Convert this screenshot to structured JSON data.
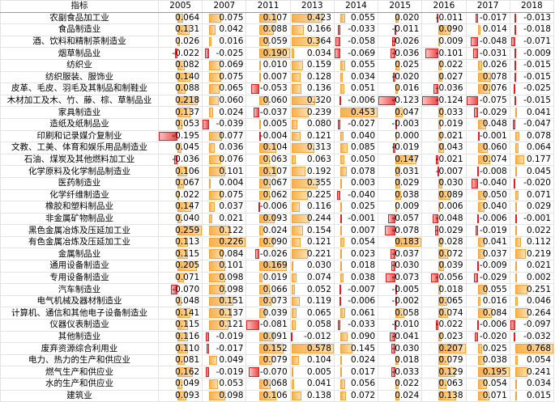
{
  "table": {
    "header": [
      "指标",
      "2005",
      "2007",
      "2011",
      "2013",
      "2014",
      "2015",
      "2016",
      "2017",
      "2018"
    ],
    "rows": [
      [
        "农副食品加工业",
        "0.064",
        "0.075",
        "0.107",
        "0.423",
        "0.055",
        "0.020",
        "-0.011",
        "-0.017",
        "-0.013"
      ],
      [
        "食品制造业",
        "0.131",
        "0.042",
        "0.088",
        "0.166",
        "-0.033",
        "-0.011",
        "0.090",
        "0.014",
        "-0.018"
      ],
      [
        "酒、饮料和精制茶制造业",
        "0.026",
        "0.016",
        "0.059",
        "0.364",
        "-0.058",
        "-0.026",
        "0.009",
        "-0.048",
        "-0.071"
      ],
      [
        "烟草制品业",
        "-0.022",
        "-0.025",
        "0.190",
        "0.034",
        "-0.069",
        "-0.036",
        "-0.101",
        "-0.031",
        "-0.009"
      ],
      [
        "纺织业",
        "0.082",
        "0.069",
        "0.010",
        "0.159",
        "0.055",
        "0.025",
        "0.022",
        "0.026",
        "-0.015"
      ],
      [
        "纺织服装、服饰业",
        "0.140",
        "0.075",
        "0.007",
        "0.128",
        "0.034",
        "-0.020",
        "0.027",
        "0.078",
        "-0.015"
      ],
      [
        "皮革、毛皮、羽毛及其制品和制鞋业",
        "0.088",
        "0.065",
        "-0.053",
        "0.136",
        "0.051",
        "0.016",
        "-0.036",
        "0.076",
        "-0.025"
      ],
      [
        "木材加工及木、竹、藤、棕、草制品业",
        "0.218",
        "0.060",
        "0.060",
        "0.320",
        "-0.006",
        "-0.123",
        "-0.124",
        "-0.075",
        "-0.015"
      ],
      [
        "家具制造业",
        "0.137",
        "0.024",
        "-0.037",
        "0.239",
        "0.453",
        "0.047",
        "0.033",
        "-0.029",
        "0.041"
      ],
      [
        "造纸及纸制品业",
        "0.053",
        "-0.039",
        "0.005",
        "0.080",
        "-0.027",
        "-0.003",
        "0.019",
        "0.048",
        "-0.047"
      ],
      [
        "印刷和记录媒介复制业",
        "-0.195",
        "0.077",
        "-0.004",
        "0.121",
        "0.040",
        "0.000",
        "0.021",
        "-0.001",
        "0.078"
      ],
      [
        "文教、工美、体育和娱乐用品制造业",
        "0.045",
        "0.036",
        "0.104",
        "0.313",
        "0.085",
        "-0.019",
        "0.043",
        "0.060",
        "0.064"
      ],
      [
        "石油、煤炭及其他燃料加工业",
        "-0.036",
        "0.076",
        "0.063",
        "0.063",
        "0.050",
        "0.147",
        "-0.021",
        "0.074",
        "0.177"
      ],
      [
        "化学原料及化学制品制造业",
        "0.106",
        "0.101",
        "0.107",
        "0.192",
        "0.078",
        "0.031",
        "-0.007",
        "-0.008",
        "0.045"
      ],
      [
        "医药制造业",
        "0.067",
        "0.004",
        "0.067",
        "0.355",
        "0.003",
        "0.029",
        "0.030",
        "-0.040",
        "-0.020"
      ],
      [
        "化学纤维制造业",
        "0.022",
        "0.075",
        "0.062",
        "0.225",
        "-0.040",
        "0.038",
        "0.089",
        "0.050",
        "0.071"
      ],
      [
        "橡胶和塑料制品业",
        "0.147",
        "0.037",
        "-0.006",
        "0.116",
        "0.025",
        "0.009",
        "0.006",
        "0.040",
        "0.029"
      ],
      [
        "非金属矿物制品业",
        "0.040",
        "0.021",
        "0.093",
        "0.244",
        "-0.001",
        "-0.057",
        "-0.048",
        "-0.006",
        "-0.001"
      ],
      [
        "黑色金属冶炼及压延加工业",
        "0.259",
        "0.122",
        "0.024",
        "0.154",
        "0.007",
        "-0.078",
        "-0.029",
        "-0.019",
        "0.022"
      ],
      [
        "有色金属冶炼及压延加工业",
        "0.113",
        "0.226",
        "0.090",
        "0.121",
        "0.054",
        "0.183",
        "0.028",
        "0.041",
        "0.112"
      ],
      [
        "金属制品业",
        "0.115",
        "0.084",
        "-0.026",
        "0.221",
        "0.023",
        "-0.037",
        "0.072",
        "0.037",
        "0.219"
      ],
      [
        "通用设备制造业",
        "0.205",
        "0.101",
        "0.169",
        "0.030",
        "0.018",
        "-0.030",
        "0.039",
        "-0.009",
        "0.021"
      ],
      [
        "专用设备制造业",
        "0.071",
        "0.098",
        "0.019",
        "0.074",
        "0.038",
        "-0.073",
        "-0.056",
        "-0.029",
        "0.002"
      ],
      [
        "汽车制造业",
        "-0.070",
        "0.098",
        "0.066",
        "0.052",
        "-0.007",
        "-0.005",
        "0.018",
        "0.055",
        "0.251"
      ],
      [
        "电气机械及器材制造业",
        "0.048",
        "0.151",
        "0.073",
        "0.119",
        "-0.006",
        "-0.002",
        "0.065",
        "0.016",
        "0.046"
      ],
      [
        "计算机、通信和其他电子设备制造业",
        "0.141",
        "0.137",
        "0.039",
        "0.065",
        "0.061",
        "0.058",
        "0.074",
        "0.084",
        "0.264"
      ],
      [
        "仪器仪表制造业",
        "0.115",
        "0.121",
        "-0.081",
        "0.058",
        "-0.033",
        "-0.010",
        "-0.022",
        "-0.006",
        "-0.097"
      ],
      [
        "其他制造业",
        "0.116",
        "-0.019",
        "0.091",
        "-0.012",
        "0.090",
        "-0.041",
        "0.023",
        "-0.020",
        "-0.032"
      ],
      [
        "废弃资源综合利用业",
        "0.110",
        "-0.017",
        "0.152",
        "0.578",
        "0.145",
        "-0.030",
        "0.207",
        "0.025",
        "0.768"
      ],
      [
        "电力、热力的生产和供应业",
        "0.081",
        "0.049",
        "0.079",
        "0.104",
        "0.024",
        "0.018",
        "0.079",
        "0.038",
        "0.054"
      ],
      [
        "燃气生产和供应业",
        "0.162",
        "-0.019",
        "-0.070",
        "0.005",
        "0.017",
        "-0.033",
        "0.129",
        "0.195",
        "0.241"
      ],
      [
        "水的生产和供应业",
        "0.049",
        "0.053",
        "0.068",
        "0.041",
        "0.056",
        "0.022",
        "0.063",
        "0.054",
        "0.034"
      ],
      [
        "建筑业",
        "0.093",
        "0.098",
        "0.106",
        "0.138",
        "0.072",
        "0.024",
        "0.138",
        "0.071",
        "0.015"
      ]
    ]
  }
}
